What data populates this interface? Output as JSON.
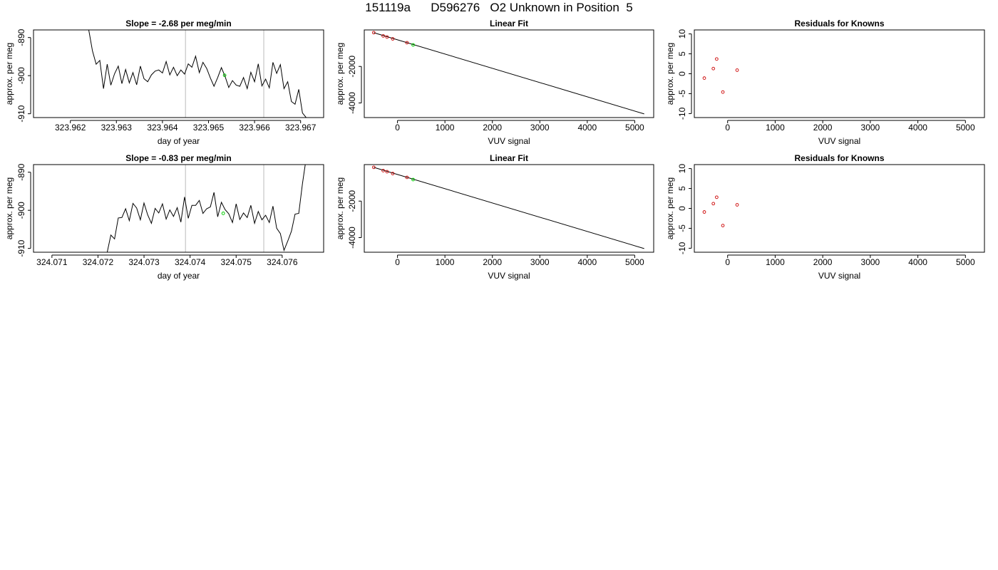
{
  "page": {
    "title": "151119a      D596276   O2 Unknown in Position  5"
  },
  "colors": {
    "line": "#000000",
    "known": "#cc0000",
    "unknown": "#00cc00",
    "vline": "#bbbbbb",
    "frame": "#000000"
  },
  "chart_data": [
    {
      "id": "ts1",
      "type": "line",
      "title": "Slope =  -2.68  per meg/min",
      "xlabel": "day of year",
      "ylabel": "approx. per meg",
      "xlim": [
        323.9612,
        323.9675
      ],
      "ylim": [
        -911,
        -888
      ],
      "xticks": [
        323.962,
        323.963,
        323.964,
        323.965,
        323.966,
        323.967
      ],
      "xtick_labels": [
        "323.962",
        "323.963",
        "323.964",
        "323.965",
        "323.966",
        "323.967"
      ],
      "yticks": [
        -890,
        -900,
        -910
      ],
      "ytick_labels": [
        "-890",
        "-900",
        "-910"
      ],
      "vlines": [
        323.9645,
        323.9662
      ],
      "series": [
        {
          "x": [
            323.9624,
            323.96248,
            323.96256,
            323.96264,
            323.96272,
            323.9628,
            323.96288,
            323.96296,
            323.96304,
            323.96312,
            323.9632,
            323.96328,
            323.96336,
            323.96344,
            323.96352,
            323.9636,
            323.96368,
            323.96376,
            323.96384,
            323.96392,
            323.964,
            323.96408,
            323.96416,
            323.96424,
            323.96432,
            323.9644,
            323.96448,
            323.96456,
            323.96464,
            323.96472,
            323.9648,
            323.96488,
            323.96496,
            323.96504,
            323.96512,
            323.9652,
            323.96528,
            323.96536,
            323.96544,
            323.96552,
            323.9656,
            323.96568,
            323.96576,
            323.96584,
            323.96592,
            323.966,
            323.96608,
            323.96616,
            323.96624,
            323.96632,
            323.9664,
            323.96648,
            323.96656,
            323.96664,
            323.96672,
            323.9668,
            323.96688,
            323.96696,
            323.96704,
            323.96712,
            323.9672
          ],
          "y": [
            -888,
            -893.5,
            -897,
            -896,
            -903.4,
            -897,
            -902.5,
            -899.5,
            -897.5,
            -902.1,
            -898.4,
            -901.9,
            -899.2,
            -902.4,
            -897.5,
            -900.8,
            -901.6,
            -899.8,
            -898.8,
            -898.5,
            -899.3,
            -896.3,
            -899.8,
            -897.8,
            -900,
            -898.5,
            -899.6,
            -896.9,
            -897.8,
            -894.9,
            -899.2,
            -896.5,
            -898.1,
            -900.6,
            -902.8,
            -900.5,
            -897.9,
            -900.2,
            -903.1,
            -901.3,
            -902.5,
            -902.8,
            -900.5,
            -903.4,
            -899.1,
            -901.6,
            -896.9,
            -902.7,
            -900.9,
            -903.2,
            -896.5,
            -899.4,
            -897.1,
            -903.4,
            -901.6,
            -906.8,
            -907.5,
            -903.6,
            -909.8,
            -911,
            -911
          ]
        }
      ],
      "unknown_point": {
        "x": 323.96535,
        "y": -899.9
      }
    },
    {
      "id": "lf1",
      "type": "scatter",
      "title": "Linear Fit",
      "xlabel": "VUV signal",
      "ylabel": "approx. per meg",
      "xlim": [
        -700,
        5400
      ],
      "ylim": [
        -4800,
        0
      ],
      "xticks": [
        0,
        1000,
        2000,
        3000,
        4000,
        5000
      ],
      "xtick_labels": [
        "0",
        "1000",
        "2000",
        "3000",
        "4000",
        "5000"
      ],
      "yticks": [
        -2000,
        -4000
      ],
      "ytick_labels": [
        "-2000",
        "-4000"
      ],
      "known_points": {
        "x": [
          -500,
          -300,
          -220,
          -100,
          200
        ],
        "y": [
          -150,
          -330,
          -390,
          -490,
          -700
        ]
      },
      "unknown_point": {
        "x": 330,
        "y": -820
      },
      "fit_line": {
        "x": [
          -500,
          5200
        ],
        "y": [
          -150,
          -4600
        ]
      }
    },
    {
      "id": "res1",
      "type": "scatter",
      "title": "Residuals for Knowns",
      "xlabel": "VUV signal",
      "ylabel": "approx. per meg",
      "xlim": [
        -700,
        5400
      ],
      "ylim": [
        -11,
        11
      ],
      "xticks": [
        0,
        1000,
        2000,
        3000,
        4000,
        5000
      ],
      "xtick_labels": [
        "0",
        "1000",
        "2000",
        "3000",
        "4000",
        "5000"
      ],
      "yticks": [
        10,
        5,
        0,
        -5,
        -10
      ],
      "ytick_labels": [
        "10",
        "5",
        "0",
        "-5",
        "-10"
      ],
      "known_points": {
        "x": [
          -490,
          -300,
          -230,
          -100,
          200
        ],
        "y": [
          -1.1,
          1.3,
          3.7,
          -4.6,
          0.9
        ]
      }
    },
    {
      "id": "ts2",
      "type": "line",
      "title": "Slope =  -0.83  per meg/min",
      "xlabel": "day of year",
      "ylabel": "approx. per meg",
      "xlim": [
        324.0706,
        324.0769
      ],
      "ylim": [
        -911,
        -888
      ],
      "xticks": [
        324.071,
        324.072,
        324.073,
        324.074,
        324.075,
        324.076
      ],
      "xtick_labels": [
        "324.071",
        "324.072",
        "324.073",
        "324.074",
        "324.075",
        "324.076"
      ],
      "yticks": [
        -890,
        -900,
        -910
      ],
      "ytick_labels": [
        "-890",
        "-900",
        "-910"
      ],
      "vlines": [
        324.0739,
        324.0756
      ],
      "series": [
        {
          "x": [
            324.0722,
            324.07228,
            324.07236,
            324.07244,
            324.07252,
            324.0726,
            324.07268,
            324.07276,
            324.07284,
            324.07292,
            324.073,
            324.07308,
            324.07316,
            324.07324,
            324.07332,
            324.0734,
            324.07348,
            324.07356,
            324.07364,
            324.07372,
            324.0738,
            324.07388,
            324.07396,
            324.07404,
            324.07412,
            324.0742,
            324.07428,
            324.07436,
            324.07444,
            324.07452,
            324.0746,
            324.07468,
            324.07476,
            324.07484,
            324.07492,
            324.075,
            324.07508,
            324.07516,
            324.07524,
            324.07532,
            324.0754,
            324.07548,
            324.07556,
            324.07564,
            324.07572,
            324.0758,
            324.07588,
            324.07596,
            324.07604,
            324.07612,
            324.0762,
            324.07628,
            324.07636,
            324.07644,
            324.0765
          ],
          "y": [
            -911,
            -906.5,
            -907.5,
            -902,
            -901.9,
            -899.6,
            -902.7,
            -898.2,
            -899.4,
            -902.5,
            -898.1,
            -901.2,
            -903.4,
            -899.5,
            -900.7,
            -898.3,
            -902.3,
            -899.9,
            -901.6,
            -899.3,
            -903.1,
            -896.5,
            -902.1,
            -898.7,
            -898.7,
            -897.4,
            -900.8,
            -899.6,
            -899.1,
            -895.3,
            -901.7,
            -897.9,
            -899.8,
            -900.9,
            -903.2,
            -898.3,
            -902.4,
            -900.7,
            -901.9,
            -898.7,
            -903.4,
            -900.3,
            -902.5,
            -901.3,
            -903.2,
            -898.9,
            -904.7,
            -906.1,
            -910.5,
            -908.1,
            -905.5,
            -901,
            -900.8,
            -893,
            -888
          ]
        }
      ],
      "unknown_point": {
        "x": 324.07472,
        "y": -900.8
      }
    },
    {
      "id": "lf2",
      "type": "scatter",
      "title": "Linear Fit",
      "xlabel": "VUV signal",
      "ylabel": "approx. per meg",
      "xlim": [
        -700,
        5400
      ],
      "ylim": [
        -4800,
        0
      ],
      "xticks": [
        0,
        1000,
        2000,
        3000,
        4000,
        5000
      ],
      "xtick_labels": [
        "0",
        "1000",
        "2000",
        "3000",
        "4000",
        "5000"
      ],
      "yticks": [
        -2000,
        -4000
      ],
      "ytick_labels": [
        "-2000",
        "-4000"
      ],
      "known_points": {
        "x": [
          -500,
          -300,
          -220,
          -100,
          200
        ],
        "y": [
          -150,
          -330,
          -390,
          -490,
          -700
        ]
      },
      "unknown_point": {
        "x": 330,
        "y": -820
      },
      "fit_line": {
        "x": [
          -500,
          5200
        ],
        "y": [
          -150,
          -4600
        ]
      }
    },
    {
      "id": "res2",
      "type": "scatter",
      "title": "Residuals for Knowns",
      "xlabel": "VUV signal",
      "ylabel": "approx. per meg",
      "xlim": [
        -700,
        5400
      ],
      "ylim": [
        -11,
        11
      ],
      "xticks": [
        0,
        1000,
        2000,
        3000,
        4000,
        5000
      ],
      "xtick_labels": [
        "0",
        "1000",
        "2000",
        "3000",
        "4000",
        "5000"
      ],
      "yticks": [
        10,
        5,
        0,
        -5,
        -10
      ],
      "ytick_labels": [
        "10",
        "5",
        "0",
        "-5",
        "-10"
      ],
      "known_points": {
        "x": [
          -490,
          -300,
          -230,
          -100,
          200
        ],
        "y": [
          -0.9,
          1.2,
          2.8,
          -4.3,
          0.9
        ]
      }
    }
  ]
}
